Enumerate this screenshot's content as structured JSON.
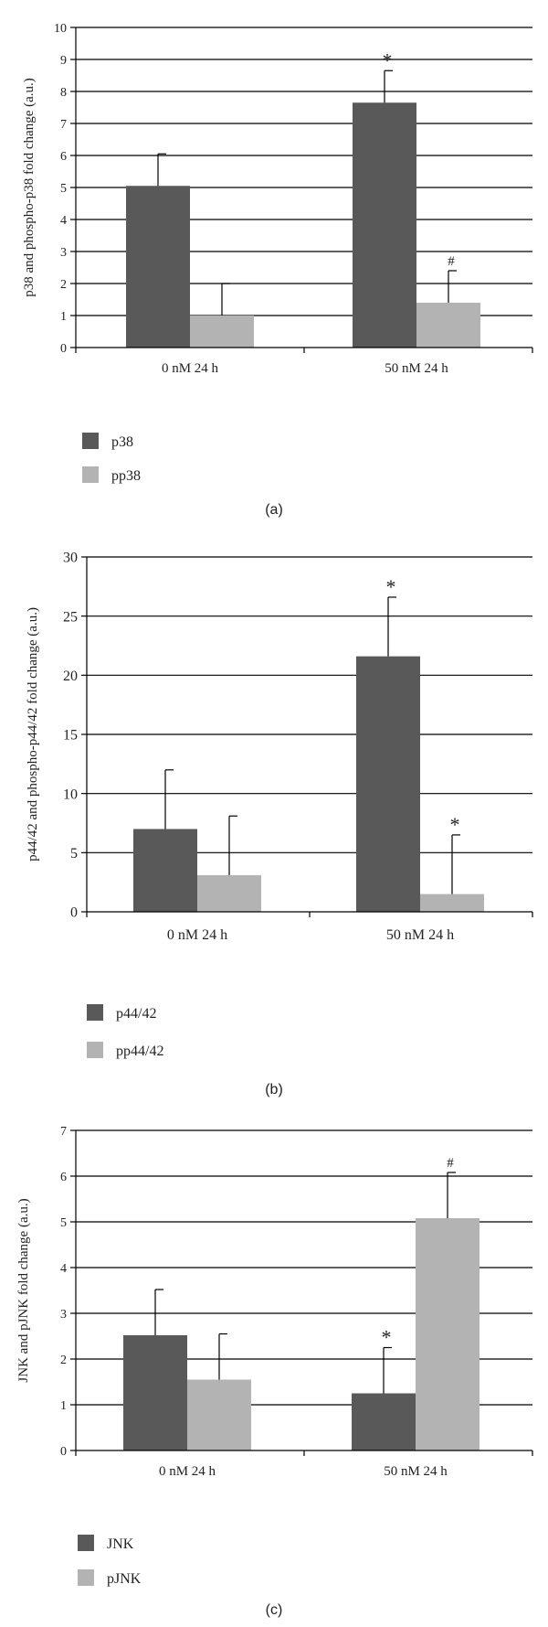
{
  "colors": {
    "dark_series": "#595959",
    "light_series": "#b3b3b3",
    "axis": "#000000",
    "grid": "#000000",
    "background": "#ffffff"
  },
  "chart_data": [
    {
      "type": "bar",
      "panel_label": "(a)",
      "ylabel": "p38 and phospho-p38 fold change (a.u.)",
      "xlabel": "",
      "categories": [
        "0 nM 24 h",
        "50 nM 24 h"
      ],
      "ylim": [
        0,
        10
      ],
      "yticks": [
        0,
        1,
        2,
        3,
        4,
        5,
        6,
        7,
        8,
        9,
        10
      ],
      "grid": true,
      "legend_position": "bottom-left",
      "series": [
        {
          "name": "p38",
          "color": "dark",
          "values": [
            5.05,
            7.65
          ],
          "errors": [
            1.0,
            1.0
          ],
          "annotations": [
            "",
            "*"
          ]
        },
        {
          "name": "pp38",
          "color": "light",
          "values": [
            1.0,
            1.4
          ],
          "errors": [
            1.0,
            1.0
          ],
          "annotations": [
            "",
            "#"
          ]
        }
      ]
    },
    {
      "type": "bar",
      "panel_label": "(b)",
      "ylabel": "p44/42 and phospho-p44/42 fold change (a.u.)",
      "xlabel": "",
      "categories": [
        "0 nM 24 h",
        "50 nM 24 h"
      ],
      "ylim": [
        0,
        30
      ],
      "yticks": [
        0,
        5,
        10,
        15,
        20,
        25,
        30
      ],
      "grid": true,
      "legend_position": "bottom-left",
      "series": [
        {
          "name": "p44/42",
          "color": "dark",
          "values": [
            7.0,
            21.6
          ],
          "errors": [
            5.0,
            5.0
          ],
          "annotations": [
            "",
            "*"
          ]
        },
        {
          "name": "pp44/42",
          "color": "light",
          "values": [
            3.1,
            1.5
          ],
          "errors": [
            5.0,
            5.0
          ],
          "annotations": [
            "",
            "*"
          ]
        }
      ]
    },
    {
      "type": "bar",
      "panel_label": "(c)",
      "ylabel": "JNK and pJNK fold change (a.u.)",
      "xlabel": "",
      "categories": [
        "0 nM 24 h",
        "50 nM 24 h"
      ],
      "ylim": [
        0,
        7
      ],
      "yticks": [
        0,
        1,
        2,
        3,
        4,
        5,
        6,
        7
      ],
      "grid": true,
      "legend_position": "bottom-left",
      "series": [
        {
          "name": "JNK",
          "color": "dark",
          "values": [
            2.52,
            1.25
          ],
          "errors": [
            1.0,
            1.0
          ],
          "annotations": [
            "",
            "*"
          ]
        },
        {
          "name": "pJNK",
          "color": "light",
          "values": [
            1.55,
            5.08
          ],
          "errors": [
            1.0,
            1.0
          ],
          "annotations": [
            "",
            "#"
          ]
        }
      ]
    }
  ]
}
